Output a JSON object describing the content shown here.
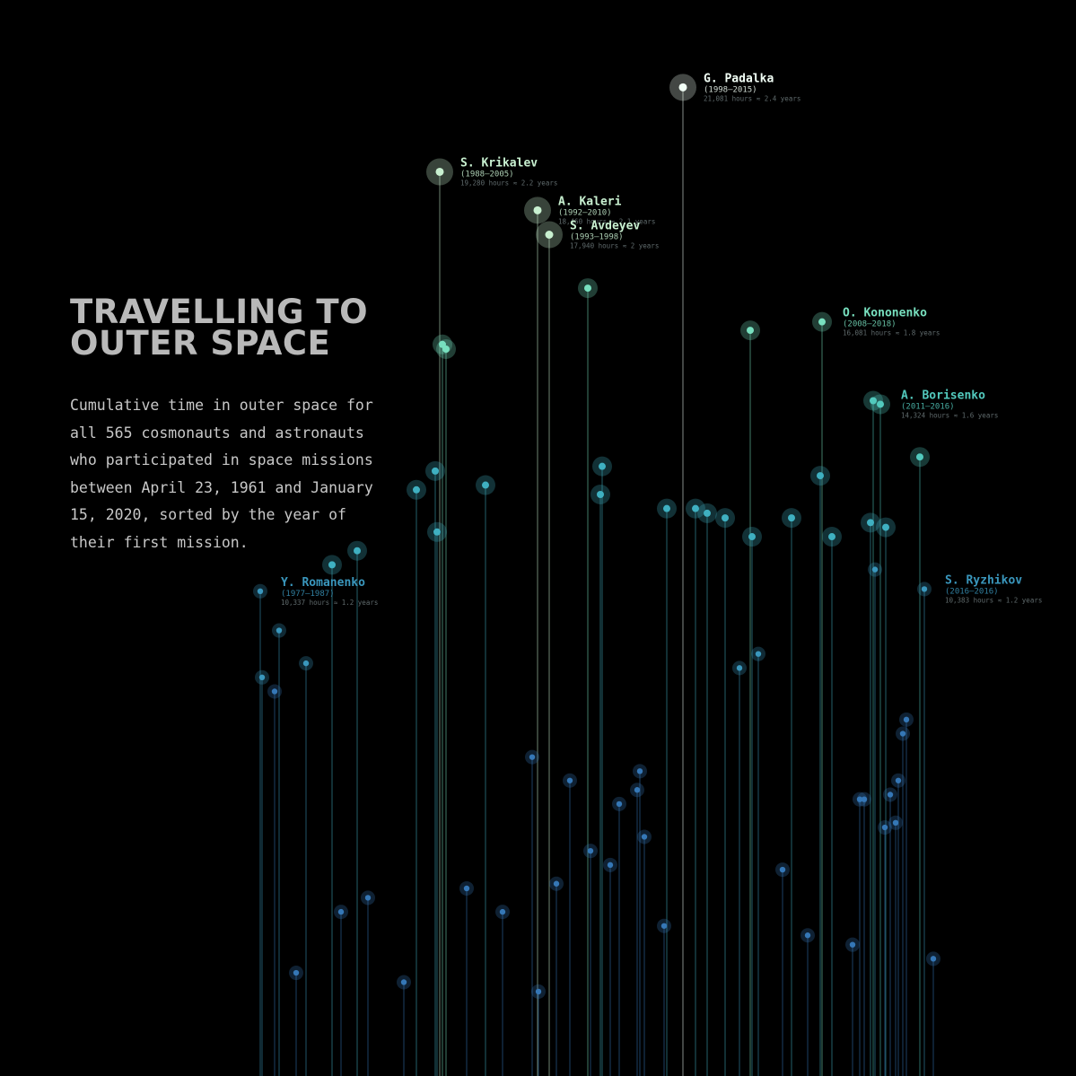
{
  "title_lines": [
    "TRAVELLING TO",
    "OUTER SPACE"
  ],
  "description": "Cumulative time in outer space for all 565 cosmonauts and astronauts who participated in space missions between April 23, 1961 and January 15, 2020, sorted by the year of their first mission.",
  "chart_data": {
    "type": "lollipop",
    "x_order": "year of first mission",
    "y_measure": "cumulative hours in outer space",
    "ylim": [
      0,
      21681
    ],
    "color_scale": [
      "#2c62a6",
      "#2fa3bf",
      "#5ad6b4",
      "#e6fff0"
    ],
    "labeled_points": [
      {
        "name": "G. Padalka",
        "years": "(1998–2015)",
        "hours": "21,081 hours ≈ 2.4 years",
        "value": 21081
      },
      {
        "name": "S. Krikalev",
        "years": "(1988–2005)",
        "hours": "19,280 hours ≈ 2.2 years",
        "value": 19280
      },
      {
        "name": "A. Kaleri",
        "years": "(1992–2010)",
        "hours": "18,460 hours ≈ 2.1 years",
        "value": 18460
      },
      {
        "name": "S. Avdeyev",
        "years": "(1993–1998)",
        "hours": "17,940 hours ≈ 2 years",
        "value": 17940
      },
      {
        "name": "O. Kononenko",
        "years": "(2008–2018)",
        "hours": "16,081 hours ≈ 1.8 years",
        "value": 16081
      },
      {
        "name": "A. Borisenko",
        "years": "(2011–2016)",
        "hours": "14,324 hours ≈ 1.6 years",
        "value": 14324
      },
      {
        "name": "Y. Romanenko",
        "years": "(1977–1987)",
        "hours": "10,337 hours ≈ 1.2 years",
        "value": 10337
      },
      {
        "name": "S. Ryzhikov",
        "years": "(2016–2016)",
        "hours": "10,383 hours ≈ 1.2 years",
        "value": 10383
      }
    ],
    "points": [
      16800,
      15600,
      15500,
      12600,
      12900,
      11600,
      15900,
      12400,
      12100,
      12000,
      11900,
      12100,
      11900,
      11500,
      11700,
      10800,
      11800,
      12800,
      14400,
      11500,
      13000,
      13200,
      12500,
      10900,
      11200,
      9500,
      8800,
      8500,
      8200,
      6800,
      6300,
      6500,
      6100,
      5800,
      9000,
      8700,
      7300,
      7600,
      6300,
      6000,
      5400,
      5300,
      5900,
      5900,
      5100,
      4800,
      4500,
      4400,
      4100,
      4000,
      3800,
      3500,
      3500,
      3200,
      3000,
      2800,
      2500,
      2200,
      2000,
      1800
    ]
  }
}
